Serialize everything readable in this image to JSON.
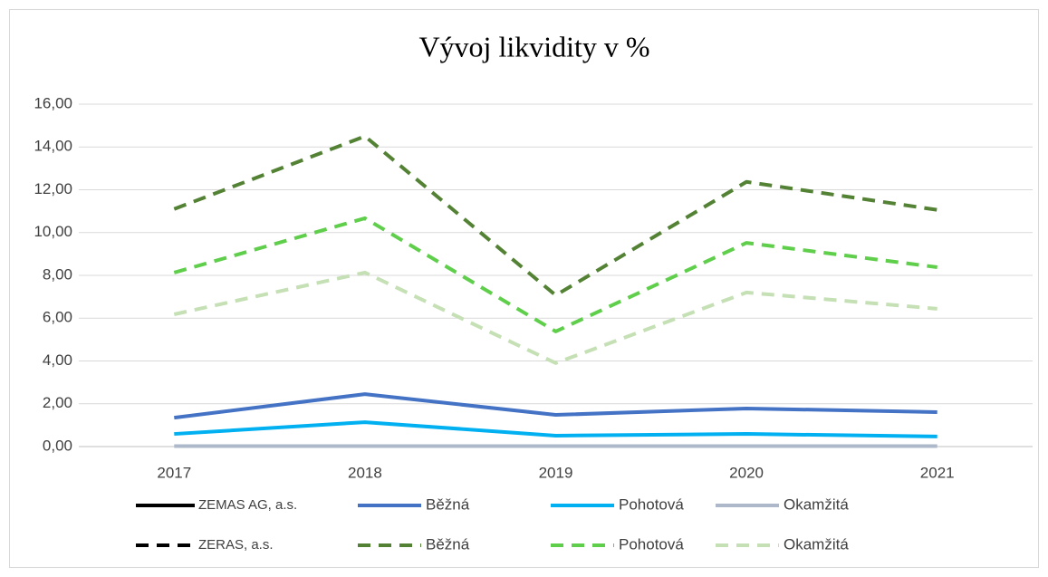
{
  "chart_data": {
    "type": "line",
    "title": "Vývoj likvidity v %",
    "categories": [
      "2017",
      "2018",
      "2019",
      "2020",
      "2021"
    ],
    "legend_groups": [
      {
        "name": "ZEMAS AG, a.s.",
        "color": "#000000",
        "dash": false
      },
      {
        "name": "ZERAS, a.s.",
        "color": "#000000",
        "dash": true
      }
    ],
    "series": [
      {
        "name": "Běžná",
        "color": "#4472c4",
        "dash": false,
        "values": [
          1.35,
          2.45,
          1.48,
          1.78,
          1.61
        ]
      },
      {
        "name": "Pohotová",
        "color": "#00b0f0",
        "dash": false,
        "values": [
          0.59,
          1.14,
          0.51,
          0.59,
          0.47
        ]
      },
      {
        "name": "Okamžitá",
        "color": "#adb9ca",
        "dash": false,
        "values": [
          0.02,
          0.02,
          0.02,
          0.02,
          0.02
        ]
      },
      {
        "name": "Běžná",
        "color": "#548235",
        "dash": true,
        "values": [
          11.1,
          14.5,
          7.07,
          12.37,
          11.06
        ]
      },
      {
        "name": "Pohotová",
        "color": "#5fcf4b",
        "dash": true,
        "values": [
          8.13,
          10.67,
          5.38,
          9.52,
          8.38
        ]
      },
      {
        "name": "Okamžitá",
        "color": "#c5e0b4",
        "dash": true,
        "values": [
          6.18,
          8.13,
          3.9,
          7.2,
          6.44
        ]
      }
    ],
    "ylim": [
      0,
      16
    ],
    "yticks": [
      {
        "value": 0,
        "label": "0,00"
      },
      {
        "value": 2,
        "label": "2,00"
      },
      {
        "value": 4,
        "label": "4,00"
      },
      {
        "value": 6,
        "label": "6,00"
      },
      {
        "value": 8,
        "label": "8,00"
      },
      {
        "value": 10,
        "label": "10,00"
      },
      {
        "value": 12,
        "label": "12,00"
      },
      {
        "value": 14,
        "label": "14,00"
      },
      {
        "value": 16,
        "label": "16,00"
      }
    ],
    "grid": true
  }
}
